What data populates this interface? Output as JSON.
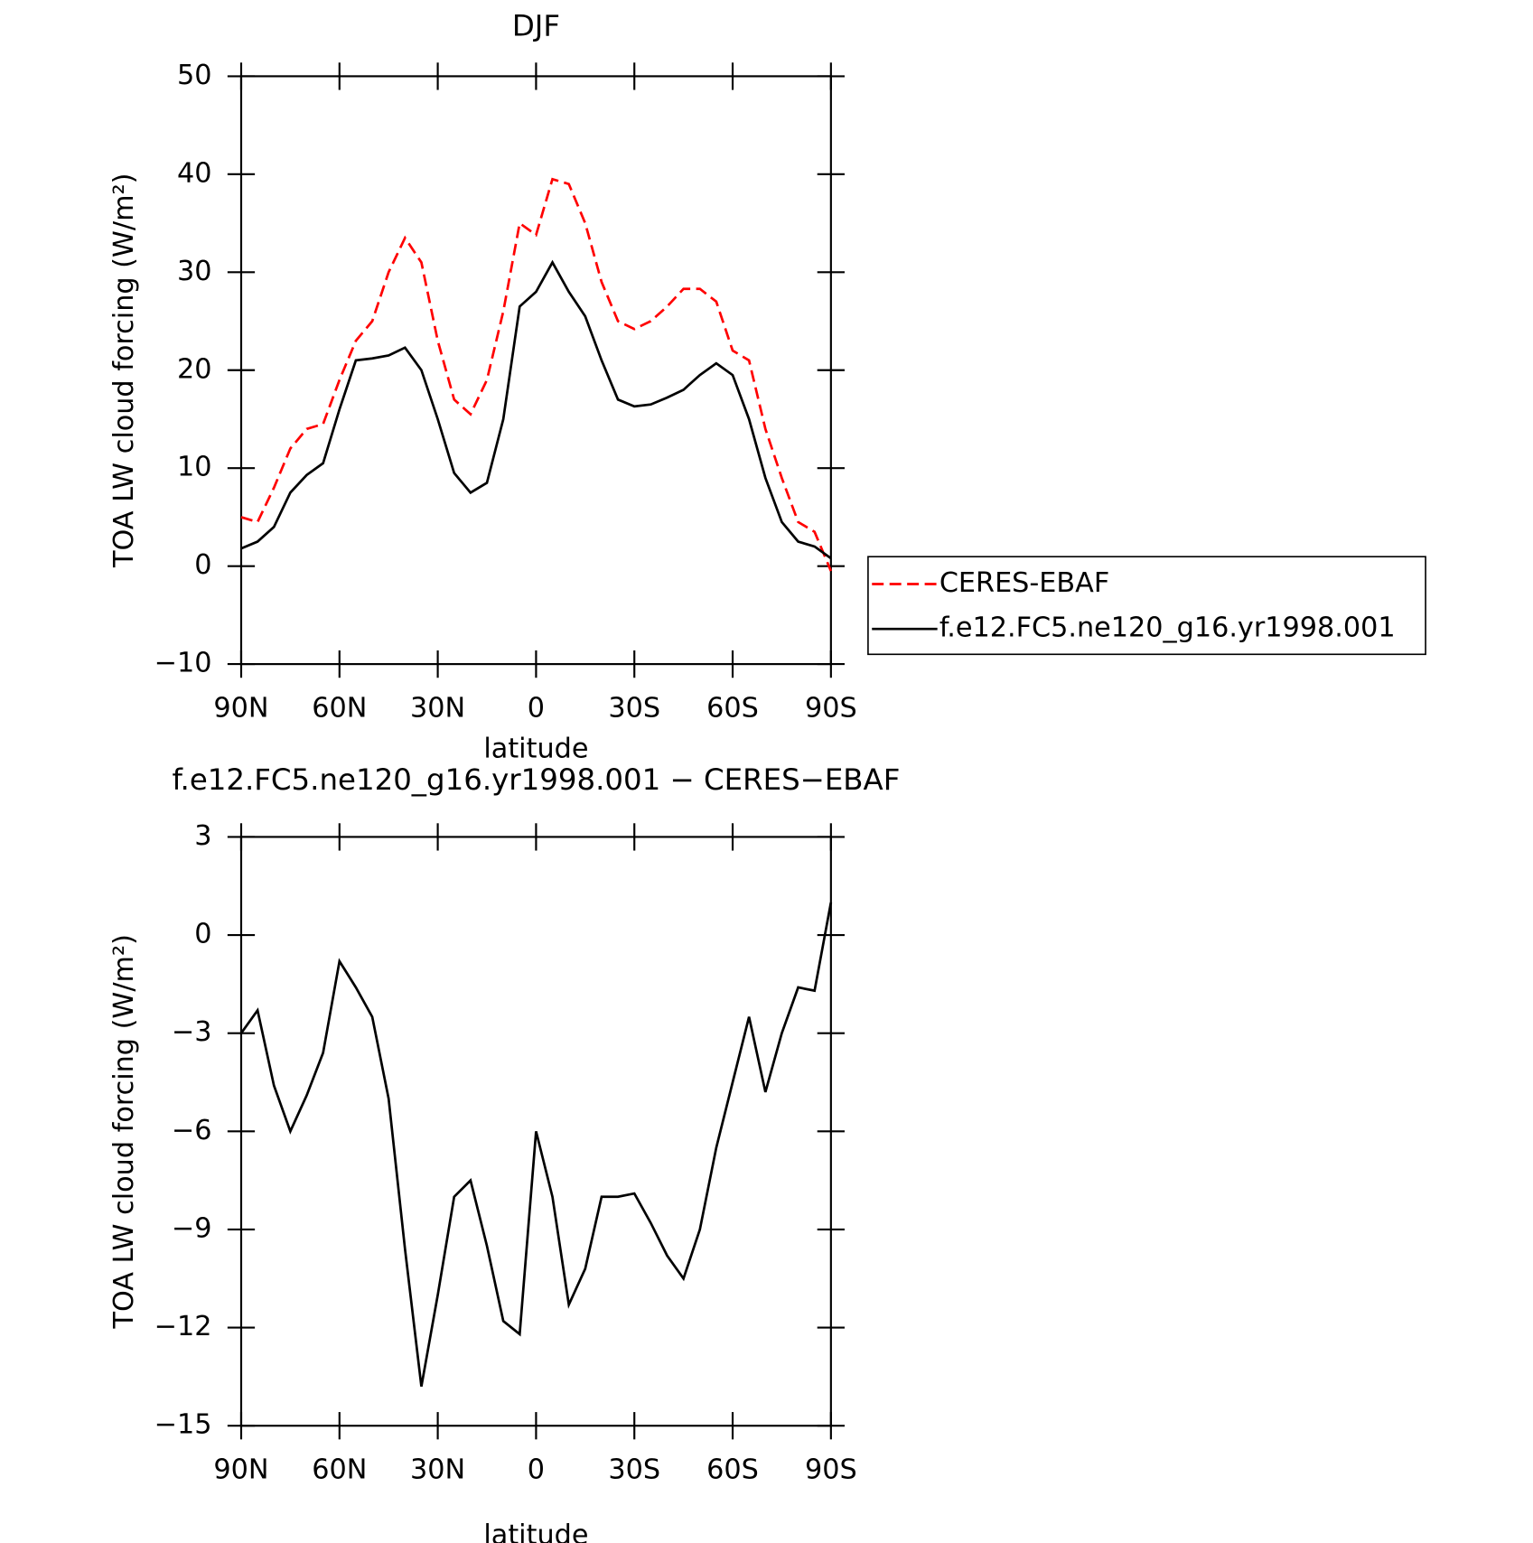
{
  "chart_data": [
    {
      "type": "line",
      "title": "DJF",
      "x_label": "latitude",
      "y_label": "TOA LW cloud forcing (W/m²)",
      "x": [
        90,
        85,
        80,
        75,
        70,
        65,
        60,
        55,
        50,
        45,
        40,
        35,
        30,
        25,
        20,
        15,
        10,
        5,
        0,
        -5,
        -10,
        -15,
        -20,
        -25,
        -30,
        -35,
        -40,
        -45,
        -50,
        -55,
        -60,
        -65,
        -70,
        -75,
        -80,
        -85,
        -90
      ],
      "xlim": [
        90,
        -90
      ],
      "xticks": [
        {
          "value": 90,
          "label": "90N"
        },
        {
          "value": 60,
          "label": "60N"
        },
        {
          "value": 30,
          "label": "30N"
        },
        0,
        {
          "value": -30,
          "label": "30S"
        },
        {
          "value": -60,
          "label": "60S"
        },
        {
          "value": -90,
          "label": "90S"
        }
      ],
      "ylim": [
        -10,
        50
      ],
      "yticks": [
        {
          "value": -10,
          "label": "−10"
        },
        0,
        10,
        20,
        30,
        40,
        50
      ],
      "legend": "outside-right",
      "series": [
        {
          "name": "CERES-EBAF",
          "color": "#ff0000",
          "line_style": "dashed",
          "values": [
            5,
            4.5,
            8,
            12,
            14,
            14.5,
            19,
            23,
            25,
            30,
            33.5,
            31,
            23,
            17,
            15.5,
            19,
            26,
            35,
            33.8,
            39.5,
            39,
            35,
            29,
            25,
            24.2,
            25,
            26.5,
            28.3,
            28.3,
            27,
            22,
            21,
            14,
            9,
            4.5,
            3.5,
            -0.5
          ]
        },
        {
          "name": "f.e12.FC5.ne120_g16.yr1998.001",
          "color": "#000000",
          "line_style": "solid",
          "values": [
            1.8,
            2.5,
            4,
            7.5,
            9.3,
            10.5,
            16,
            21,
            21.2,
            21.5,
            22.3,
            20,
            15,
            9.5,
            7.5,
            8.5,
            15,
            26.5,
            28,
            31,
            28,
            25.5,
            21,
            17,
            16.3,
            16.5,
            17.2,
            18,
            19.5,
            20.7,
            19.5,
            15,
            9,
            4.5,
            2.5,
            2,
            0.8
          ]
        }
      ]
    },
    {
      "type": "line",
      "title": "f.e12.FC5.ne120_g16.yr1998.001 − CERES−EBAF",
      "x_label": "latitude",
      "y_label": "TOA LW cloud forcing (W/m²)",
      "x": [
        90,
        85,
        80,
        75,
        70,
        65,
        60,
        55,
        50,
        45,
        40,
        35,
        30,
        25,
        20,
        15,
        10,
        5,
        0,
        -5,
        -10,
        -15,
        -20,
        -25,
        -30,
        -35,
        -40,
        -45,
        -50,
        -55,
        -60,
        -65,
        -70,
        -75,
        -80,
        -85,
        -90
      ],
      "xlim": [
        90,
        -90
      ],
      "xticks": [
        {
          "value": 90,
          "label": "90N"
        },
        {
          "value": 60,
          "label": "60N"
        },
        {
          "value": 30,
          "label": "30N"
        },
        0,
        {
          "value": -30,
          "label": "30S"
        },
        {
          "value": -60,
          "label": "60S"
        },
        {
          "value": -90,
          "label": "90S"
        }
      ],
      "ylim": [
        -15,
        3
      ],
      "yticks": [
        {
          "value": -15,
          "label": "−15"
        },
        {
          "value": -12,
          "label": "−12"
        },
        {
          "value": -9,
          "label": "−9"
        },
        {
          "value": -6,
          "label": "−6"
        },
        {
          "value": -3,
          "label": "−3"
        },
        0,
        3
      ],
      "series": [
        {
          "color": "#000000",
          "line_style": "solid",
          "values": [
            -3,
            -2.3,
            -4.6,
            -6,
            -4.9,
            -3.6,
            -0.8,
            -1.6,
            -2.5,
            -5,
            -9.6,
            -13.8,
            -11,
            -8,
            -7.5,
            -9.5,
            -11.8,
            -12.2,
            -6,
            -8,
            -11.3,
            -10.2,
            -8,
            -8,
            -7.9,
            -8.8,
            -9.8,
            -10.5,
            -9,
            -6.5,
            -4.5,
            -2.5,
            -4.8,
            -3,
            -1.6,
            -1.7,
            1
          ]
        }
      ]
    }
  ]
}
